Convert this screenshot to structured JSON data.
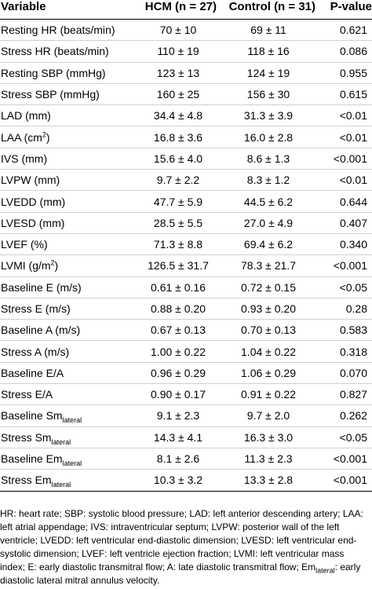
{
  "headers": {
    "variable": "Variable",
    "hcm": "HCM (n = 27)",
    "control": "Control (n = 31)",
    "p": "P-value"
  },
  "rows": [
    {
      "label": "Resting HR (beats/min)",
      "hcm": "70 ± 10",
      "control": "69 ± 11",
      "p": "0.621"
    },
    {
      "label": "Stress HR (beats/min)",
      "hcm": "110 ± 19",
      "control": "118 ± 16",
      "p": "0.086"
    },
    {
      "label": "Resting SBP (mmHg)",
      "hcm": "123 ± 13",
      "control": "124 ± 19",
      "p": "0.955"
    },
    {
      "label": "Stress SBP (mmHg)",
      "hcm": "160 ± 25",
      "control": "156 ± 30",
      "p": "0.615"
    },
    {
      "label": "LAD (mm)",
      "hcm": "34.4 ± 4.8",
      "control": "31.3 ± 3.9",
      "p": "<0.01"
    },
    {
      "label": "LAA (cm",
      "sup": "2",
      "after": ")",
      "hcm": "16.8 ± 3.6",
      "control": "16.0 ± 2.8",
      "p": "<0.01"
    },
    {
      "label": "IVS (mm)",
      "hcm": "15.6 ± 4.0",
      "control": "8.6 ± 1.3",
      "p": "<0.001"
    },
    {
      "label": "LVPW (mm)",
      "hcm": "9.7 ± 2.2",
      "control": "8.3 ± 1.2",
      "p": "<0.01"
    },
    {
      "label": "LVEDD (mm)",
      "hcm": "47.7 ± 5.9",
      "control": "44.5 ± 6.2",
      "p": "0.644"
    },
    {
      "label": "LVESD (mm)",
      "hcm": "28.5 ± 5.5",
      "control": "27.0 ± 4.9",
      "p": "0.407"
    },
    {
      "label": "LVEF (%)",
      "hcm": "71.3 ± 8.8",
      "control": "69.4 ± 6.2",
      "p": "0.340"
    },
    {
      "label": "LVMI (g/m",
      "sup": "2",
      "after": ")",
      "hcm": "126.5 ± 31.7",
      "control": "78.3 ± 21.7",
      "p": "<0.001"
    },
    {
      "label": "Baseline E (m/s)",
      "hcm": "0.61 ± 0.16",
      "control": "0.72 ± 0.15",
      "p": "<0.05"
    },
    {
      "label": "Stress E (m/s)",
      "hcm": "0.88 ± 0.20",
      "control": "0.93 ± 0.20",
      "p": "0.28"
    },
    {
      "label": "Baseline A (m/s)",
      "hcm": "0.67 ± 0.13",
      "control": "0.70 ± 0.13",
      "p": "0.583"
    },
    {
      "label": "Stress A (m/s)",
      "hcm": "1.00 ± 0.22",
      "control": "1.04 ± 0.22",
      "p": "0.318"
    },
    {
      "label": "Baseline E/A",
      "hcm": "0.96 ± 0.29",
      "control": "1.06 ± 0.29",
      "p": "0.070"
    },
    {
      "label": "Stress E/A",
      "hcm": "0.90 ± 0.17",
      "control": "0.91 ± 0.22",
      "p": "0.827"
    },
    {
      "label": "Baseline Sm",
      "sub": "lateral",
      "hcm": "9.1 ± 2.3",
      "control": "9.7 ± 2.0",
      "p": "0.262"
    },
    {
      "label": "Stress Sm",
      "sub": "lateral",
      "hcm": "14.3 ± 4.1",
      "control": "16.3 ± 3.0",
      "p": "<0.05"
    },
    {
      "label": "Baseline Em",
      "sub": "lateral",
      "hcm": "8.1 ± 2.6",
      "control": "11.3 ± 2.3",
      "p": "<0.001"
    },
    {
      "label": "Stress Em",
      "sub": "lateral",
      "hcm": "10.3 ± 3.2",
      "control": "13.3 ± 2.8",
      "p": "<0.001"
    }
  ],
  "footnote": {
    "text": "HR: heart rate; SBP: systolic blood pressure; LAD: left anterior descending artery; LAA: left atrial appendage; IVS: intraventricular septum; LVPW: posterior wall of the left ventricle; LVEDD: left ventricular end-diastolic dimension; LVESD: left ventricular end-systolic dimension; LVEF: left ventricle ejection fraction; LVMI: left ventricular mass index; E: early diastolic transmitral flow; A: late diastolic transmitral flow; ",
    "em_label": "Em",
    "em_sub": "lateral",
    "em_text": ": early diastolic lateral mitral annulus velocity."
  }
}
